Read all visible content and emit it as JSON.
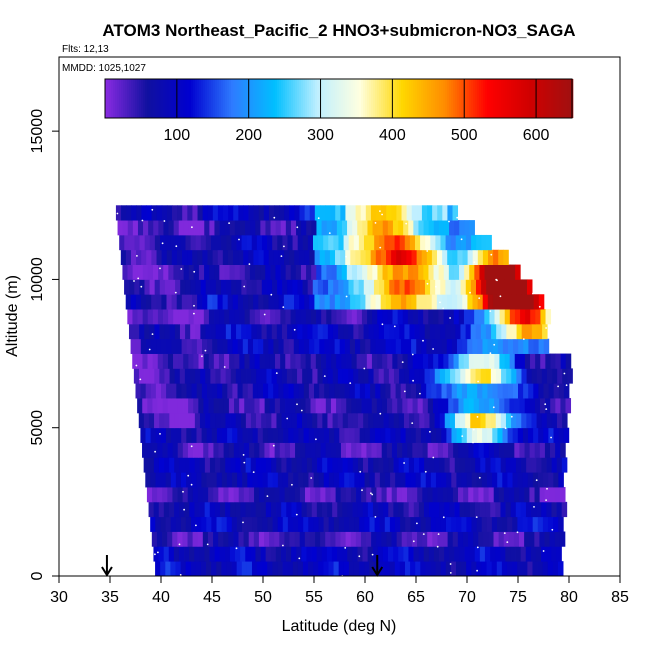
{
  "chart_data": {
    "type": "heatmap",
    "title": "ATOM3 Northeast_Pacific_2 HNO3+submicron-NO3_SAGA",
    "flights_label": "Flts: 12,13",
    "dates_label": "MMDD: 1025,1027",
    "xlabel": "Latitude (deg N)",
    "ylabel": "Altitude (m)",
    "xlim": [
      30,
      85
    ],
    "ylim": [
      0,
      17500
    ],
    "x_ticks": [
      "30",
      "35",
      "40",
      "45",
      "50",
      "55",
      "60",
      "65",
      "70",
      "75",
      "80",
      "85"
    ],
    "y_ticks": [
      "0",
      "5000",
      "10000",
      "15000"
    ],
    "colorbar": {
      "range": [
        0,
        650
      ],
      "ticks": [
        "100",
        "200",
        "300",
        "400",
        "500",
        "600"
      ],
      "colors": [
        "#8A2BE2",
        "#1010A0",
        "#0000D0",
        "#2E7BFF",
        "#00BFFF",
        "#BFEFFF",
        "#FFFFE0",
        "#FFD700",
        "#FF8C00",
        "#FF0000",
        "#D00000",
        "#A01010"
      ],
      "position": "top-inside"
    },
    "arrows": [
      {
        "lat": 34.7
      },
      {
        "lat": 61.2
      }
    ],
    "data_extent": {
      "altitude_top": 12500,
      "lat_start_bottom": 39.5,
      "lat_start_top": 35.5,
      "lat_end_profile": [
        [
          0,
          79
        ],
        [
          7500,
          80
        ],
        [
          7600,
          77.5
        ],
        [
          9000,
          78
        ],
        [
          11000,
          73
        ],
        [
          12500,
          68
        ]
      ]
    },
    "hotspots": [
      {
        "lat": 64,
        "alt": 9600,
        "value": 430
      },
      {
        "lat": 63,
        "alt": 10800,
        "value": 380
      },
      {
        "lat": 74,
        "alt": 9400,
        "value": 600
      },
      {
        "lat": 73,
        "alt": 10200,
        "value": 560
      },
      {
        "lat": 76,
        "alt": 8500,
        "value": 520
      },
      {
        "lat": 71,
        "alt": 6900,
        "value": 480
      },
      {
        "lat": 71.5,
        "alt": 5200,
        "value": 460
      },
      {
        "lat": 61,
        "alt": 11800,
        "value": 300
      }
    ]
  }
}
